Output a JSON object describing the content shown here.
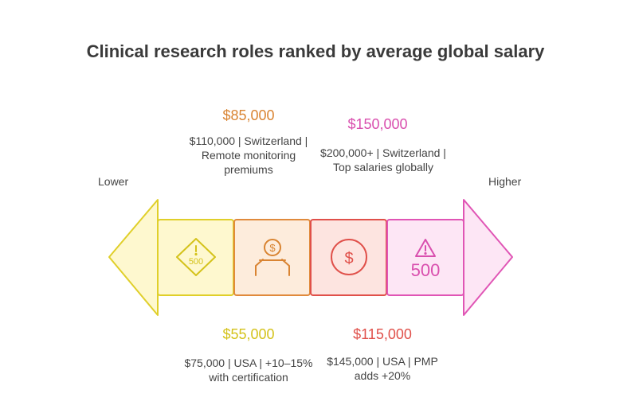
{
  "title": "Clinical research roles ranked by average global salary",
  "scale": {
    "low_label": "Lower",
    "high_label": "Higher"
  },
  "segments": [
    {
      "amount": "$55,000",
      "description": "$75,000 | USA | +10–15% with certification",
      "color": "#e0cf2a",
      "icon": "warning-diamond-500-icon",
      "icon_text": "500"
    },
    {
      "amount": "$85,000",
      "description": "$110,000 | Switzerland | Remote monitoring premiums",
      "color": "#e08a3c",
      "icon": "coin-hand-icon",
      "icon_text": "$"
    },
    {
      "amount": "$115,000",
      "description": "$145,000 | USA | PMP adds +20%",
      "color": "#e0504a",
      "icon": "dollar-circle-icon",
      "icon_text": "$"
    },
    {
      "amount": "$150,000",
      "description": "$200,000+ | Switzerland | Top salaries globally",
      "color": "#e055b5",
      "icon": "warning-triangle-500-icon",
      "icon_text": "500"
    }
  ]
}
